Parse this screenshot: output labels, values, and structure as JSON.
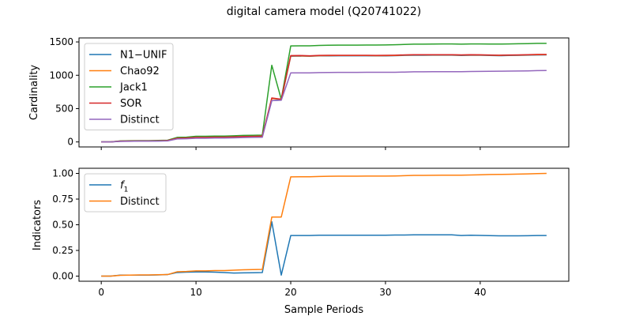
{
  "figure": {
    "title": "digital camera model (Q20741022)"
  },
  "chart_data": [
    {
      "type": "line",
      "ylabel": "Cardinality",
      "xlabel": "",
      "xlim": [
        -2.35,
        49.35
      ],
      "ylim": [
        -75,
        1560
      ],
      "yticks": [
        0,
        500,
        1000,
        1500
      ],
      "xticks": [
        0,
        10,
        20,
        30,
        40
      ],
      "xticklabels_visible": false,
      "legend": "upper-left",
      "grid": false,
      "series": [
        {
          "name": "N1−UNIF",
          "color": "#1f77b4",
          "x": [
            0,
            1,
            2,
            3,
            4,
            5,
            6,
            7,
            8,
            9,
            10,
            11,
            12,
            13,
            14,
            15,
            16,
            17,
            18,
            19,
            20,
            21,
            22,
            23,
            24,
            25,
            26,
            27,
            28,
            29,
            30,
            31,
            32,
            33,
            34,
            35,
            36,
            37,
            38,
            39,
            40,
            41,
            42,
            43,
            44,
            45,
            46,
            47
          ],
          "y": [
            0,
            0,
            10,
            12,
            14,
            14,
            15,
            18,
            52,
            55,
            62,
            62,
            66,
            66,
            70,
            75,
            77,
            80,
            620,
            630,
            1285,
            1287,
            1284,
            1290,
            1291,
            1292,
            1292,
            1292,
            1292,
            1290,
            1291,
            1293,
            1298,
            1300,
            1300,
            1301,
            1301,
            1301,
            1297,
            1300,
            1299,
            1296,
            1293,
            1296,
            1298,
            1301,
            1304,
            1305
          ]
        },
        {
          "name": "Chao92",
          "color": "#ff7f0e",
          "x": [
            0,
            1,
            2,
            3,
            4,
            5,
            6,
            7,
            8,
            9,
            10,
            11,
            12,
            13,
            14,
            15,
            16,
            17,
            18,
            19,
            20,
            21,
            22,
            23,
            24,
            25,
            26,
            27,
            28,
            29,
            30,
            31,
            32,
            33,
            34,
            35,
            36,
            37,
            38,
            39,
            40,
            41,
            42,
            43,
            44,
            45,
            46,
            47
          ],
          "y": [
            0,
            0,
            12,
            14,
            16,
            16,
            17,
            20,
            55,
            58,
            66,
            66,
            70,
            70,
            74,
            80,
            82,
            85,
            650,
            640,
            1290,
            1290,
            1288,
            1294,
            1295,
            1296,
            1296,
            1296,
            1296,
            1294,
            1295,
            1297,
            1302,
            1305,
            1305,
            1306,
            1306,
            1306,
            1302,
            1305,
            1304,
            1301,
            1298,
            1301,
            1303,
            1306,
            1309,
            1310
          ]
        },
        {
          "name": "Jack1",
          "color": "#2ca02c",
          "x": [
            0,
            1,
            2,
            3,
            4,
            5,
            6,
            7,
            8,
            9,
            10,
            11,
            12,
            13,
            14,
            15,
            16,
            17,
            18,
            19,
            20,
            21,
            22,
            23,
            24,
            25,
            26,
            27,
            28,
            29,
            30,
            31,
            32,
            33,
            34,
            35,
            36,
            37,
            38,
            39,
            40,
            41,
            42,
            43,
            44,
            45,
            46,
            47
          ],
          "y": [
            0,
            0,
            15,
            18,
            20,
            20,
            22,
            26,
            68,
            72,
            85,
            85,
            88,
            88,
            92,
            98,
            100,
            103,
            1150,
            640,
            1440,
            1442,
            1442,
            1448,
            1450,
            1452,
            1452,
            1452,
            1454,
            1454,
            1455,
            1458,
            1462,
            1466,
            1466,
            1468,
            1469,
            1470,
            1466,
            1470,
            1470,
            1468,
            1468,
            1470,
            1472,
            1474,
            1478,
            1478
          ]
        },
        {
          "name": "SOR",
          "color": "#d62728",
          "x": [
            0,
            1,
            2,
            3,
            4,
            5,
            6,
            7,
            8,
            9,
            10,
            11,
            12,
            13,
            14,
            15,
            16,
            17,
            18,
            19,
            20,
            21,
            22,
            23,
            24,
            25,
            26,
            27,
            28,
            29,
            30,
            31,
            32,
            33,
            34,
            35,
            36,
            37,
            38,
            39,
            40,
            41,
            42,
            43,
            44,
            45,
            46,
            47
          ],
          "y": [
            0,
            0,
            12,
            14,
            16,
            16,
            17,
            21,
            56,
            60,
            68,
            68,
            72,
            72,
            76,
            82,
            84,
            88,
            660,
            640,
            1295,
            1296,
            1292,
            1298,
            1299,
            1300,
            1300,
            1300,
            1300,
            1298,
            1299,
            1301,
            1306,
            1308,
            1308,
            1309,
            1309,
            1309,
            1305,
            1308,
            1307,
            1304,
            1301,
            1304,
            1306,
            1309,
            1312,
            1313
          ]
        },
        {
          "name": "Distinct",
          "color": "#9467bd",
          "x": [
            0,
            1,
            2,
            3,
            4,
            5,
            6,
            7,
            8,
            9,
            10,
            11,
            12,
            13,
            14,
            15,
            16,
            17,
            18,
            19,
            20,
            21,
            22,
            23,
            24,
            25,
            26,
            27,
            28,
            29,
            30,
            31,
            32,
            33,
            34,
            35,
            36,
            37,
            38,
            39,
            40,
            41,
            42,
            43,
            44,
            45,
            46,
            47
          ],
          "y": [
            0,
            0,
            8,
            10,
            12,
            12,
            13,
            15,
            45,
            48,
            55,
            55,
            58,
            58,
            62,
            66,
            68,
            70,
            620,
            625,
            1035,
            1036,
            1036,
            1040,
            1042,
            1043,
            1043,
            1043,
            1044,
            1044,
            1044,
            1045,
            1048,
            1052,
            1052,
            1053,
            1054,
            1054,
            1054,
            1056,
            1058,
            1060,
            1061,
            1062,
            1064,
            1066,
            1070,
            1072
          ]
        }
      ]
    },
    {
      "type": "line",
      "ylabel": "Indicators",
      "xlabel": "Sample Periods",
      "xlim": [
        -2.35,
        49.35
      ],
      "ylim": [
        -0.05,
        1.05
      ],
      "yticks": [
        0.0,
        0.25,
        0.5,
        0.75,
        1.0
      ],
      "yticklabels": [
        "0.00",
        "0.25",
        "0.50",
        "0.75",
        "1.00"
      ],
      "xticks": [
        0,
        10,
        20,
        30,
        40
      ],
      "xticklabels": [
        "0",
        "10",
        "20",
        "30",
        "40"
      ],
      "legend": "upper-left",
      "grid": false,
      "series": [
        {
          "name": "f1",
          "name_base": "f",
          "name_sub": "1",
          "color": "#1f77b4",
          "x": [
            0,
            1,
            2,
            3,
            4,
            5,
            6,
            7,
            8,
            9,
            10,
            11,
            12,
            13,
            14,
            15,
            16,
            17,
            18,
            19,
            20,
            21,
            22,
            23,
            24,
            25,
            26,
            27,
            28,
            29,
            30,
            31,
            32,
            33,
            34,
            35,
            36,
            37,
            38,
            39,
            40,
            41,
            42,
            43,
            44,
            45,
            46,
            47
          ],
          "y": [
            0.0,
            0.0,
            0.01,
            0.01,
            0.01,
            0.01,
            0.012,
            0.015,
            0.035,
            0.038,
            0.04,
            0.04,
            0.038,
            0.035,
            0.03,
            0.032,
            0.033,
            0.035,
            0.53,
            0.01,
            0.395,
            0.395,
            0.395,
            0.398,
            0.398,
            0.398,
            0.398,
            0.398,
            0.398,
            0.398,
            0.398,
            0.4,
            0.4,
            0.402,
            0.402,
            0.402,
            0.402,
            0.402,
            0.395,
            0.398,
            0.396,
            0.394,
            0.392,
            0.392,
            0.392,
            0.393,
            0.395,
            0.395
          ]
        },
        {
          "name": "Distinct",
          "color": "#ff7f0e",
          "x": [
            0,
            1,
            2,
            3,
            4,
            5,
            6,
            7,
            8,
            9,
            10,
            11,
            12,
            13,
            14,
            15,
            16,
            17,
            18,
            19,
            20,
            21,
            22,
            23,
            24,
            25,
            26,
            27,
            28,
            29,
            30,
            31,
            32,
            33,
            34,
            35,
            36,
            37,
            38,
            39,
            40,
            41,
            42,
            43,
            44,
            45,
            46,
            47
          ],
          "y": [
            0.0,
            0.0,
            0.008,
            0.01,
            0.012,
            0.012,
            0.013,
            0.015,
            0.042,
            0.045,
            0.051,
            0.051,
            0.054,
            0.054,
            0.058,
            0.062,
            0.063,
            0.065,
            0.575,
            0.575,
            0.966,
            0.967,
            0.967,
            0.97,
            0.972,
            0.973,
            0.973,
            0.973,
            0.974,
            0.974,
            0.974,
            0.975,
            0.978,
            0.981,
            0.981,
            0.982,
            0.983,
            0.983,
            0.983,
            0.985,
            0.987,
            0.989,
            0.99,
            0.991,
            0.993,
            0.995,
            0.998,
            1.0
          ]
        }
      ]
    }
  ]
}
